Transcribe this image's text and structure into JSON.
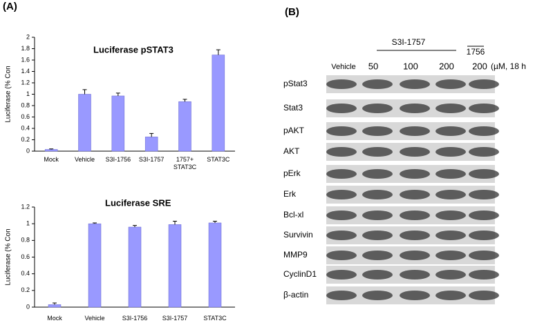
{
  "panel_labels": [
    "(A)",
    "(B)"
  ],
  "chart_data": [
    {
      "type": "bar",
      "title": "Luciferase pSTAT3",
      "y_label": "Luciferase (% Con",
      "categories": [
        "Mock",
        "Vehicle",
        "S3I-1756",
        "S3I-1757",
        "1757+ STAT3C",
        "STAT3C"
      ],
      "values": [
        0.03,
        1.0,
        0.97,
        0.25,
        0.87,
        1.69
      ],
      "errors": [
        0.01,
        0.08,
        0.05,
        0.06,
        0.04,
        0.09
      ],
      "color": "#9999ff",
      "ylim": [
        0,
        2
      ],
      "yticks": [
        0,
        0.2,
        0.4,
        0.6,
        0.8,
        1,
        1.2,
        1.4,
        1.6,
        1.8,
        2
      ]
    },
    {
      "type": "bar",
      "title": "Luciferase SRE",
      "y_label": "Luciferase (% Con",
      "categories": [
        "Mock",
        "Vehicle",
        "S3I-1756",
        "S3I-1757",
        "STAT3C"
      ],
      "values": [
        0.03,
        1.0,
        0.96,
        0.99,
        1.01
      ],
      "errors": [
        0.02,
        0.01,
        0.02,
        0.04,
        0.02
      ],
      "color": "#9999ff",
      "ylim": [
        0,
        1.2
      ],
      "yticks": [
        0,
        0.2,
        0.4,
        0.6,
        0.8,
        1,
        1.2
      ]
    }
  ],
  "blot": {
    "group_label": "S3I-1757",
    "control_label": "1756",
    "unit_label": "(µM, 18 h",
    "lanes": [
      "Vehicle",
      "50",
      "100",
      "200",
      "200"
    ],
    "rows": [
      "pStat3",
      "Stat3",
      "pAKT",
      "AKT",
      "pErk",
      "Erk",
      "Bcl-xl",
      "Survivin",
      "MMP9",
      "CyclinD1",
      "β-actin"
    ]
  }
}
